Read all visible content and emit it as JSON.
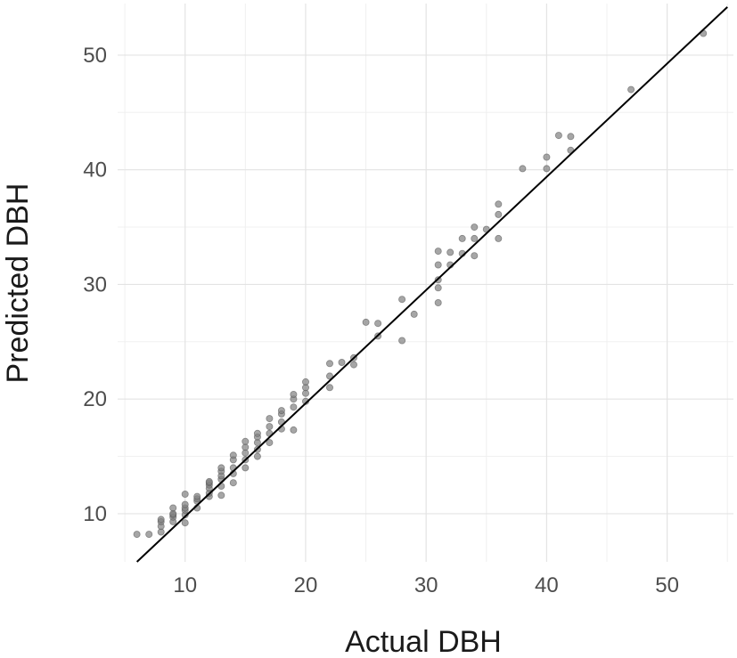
{
  "chart_data": {
    "type": "scatter",
    "title": "",
    "xlabel": "Actual DBH",
    "ylabel": "Predicted DBH",
    "xlim": [
      4.4,
      55.5
    ],
    "ylim": [
      5.8,
      54.5
    ],
    "x_ticks": [
      10,
      20,
      30,
      40,
      50
    ],
    "y_ticks": [
      10,
      20,
      30,
      40,
      50
    ],
    "grid": true,
    "legend": "none",
    "point_color": "#808080",
    "line_color": "#000000",
    "fit_line": {
      "x": [
        6,
        55
      ],
      "y": [
        5.8,
        54.2
      ]
    },
    "points": {
      "x": [
        6,
        7,
        8,
        8,
        8,
        8,
        9,
        9,
        9,
        9,
        9,
        10,
        10,
        10,
        10,
        10,
        10,
        11,
        11,
        11,
        11,
        12,
        12,
        12,
        12,
        12,
        12,
        13,
        13,
        13,
        13,
        13,
        13,
        14,
        14,
        14,
        14,
        14,
        15,
        15,
        15,
        15,
        15,
        16,
        16,
        16,
        16,
        16,
        17,
        17,
        17,
        17,
        18,
        18,
        18,
        18,
        19,
        19,
        19,
        19,
        20,
        20,
        20,
        20,
        22,
        22,
        22,
        23,
        24,
        24,
        25,
        26,
        26,
        28,
        28,
        29,
        31,
        31,
        31,
        31,
        31,
        32,
        32,
        33,
        33,
        34,
        34,
        34,
        35,
        36,
        36,
        36,
        38,
        40,
        40,
        41,
        42,
        42,
        47,
        53
      ],
      "y": [
        8.2,
        8.2,
        8.4,
        8.9,
        9.3,
        9.5,
        9.3,
        9.7,
        9.9,
        10.0,
        10.5,
        9.2,
        9.9,
        10.3,
        10.5,
        10.8,
        11.7,
        10.5,
        11.1,
        11.3,
        11.5,
        11.5,
        11.8,
        12.2,
        12.5,
        12.7,
        12.8,
        11.6,
        12.4,
        13.0,
        13.3,
        13.7,
        14.0,
        12.7,
        13.5,
        14.0,
        14.7,
        15.1,
        14.0,
        14.7,
        15.3,
        15.8,
        16.3,
        15.0,
        15.6,
        16.2,
        16.7,
        17.0,
        16.2,
        17.0,
        17.6,
        18.3,
        17.4,
        18.0,
        18.7,
        19.0,
        17.3,
        19.3,
        20.0,
        20.4,
        19.8,
        20.5,
        21.0,
        21.5,
        21.0,
        22.0,
        23.1,
        23.2,
        23.0,
        23.6,
        26.7,
        25.5,
        26.6,
        25.1,
        28.7,
        27.4,
        28.4,
        29.7,
        30.4,
        31.7,
        32.9,
        31.7,
        32.8,
        32.7,
        34.0,
        32.5,
        34.0,
        35.0,
        34.8,
        34.0,
        36.1,
        37.0,
        40.1,
        40.1,
        41.1,
        43.0,
        41.7,
        42.9,
        47.0,
        51.9
      ]
    }
  }
}
